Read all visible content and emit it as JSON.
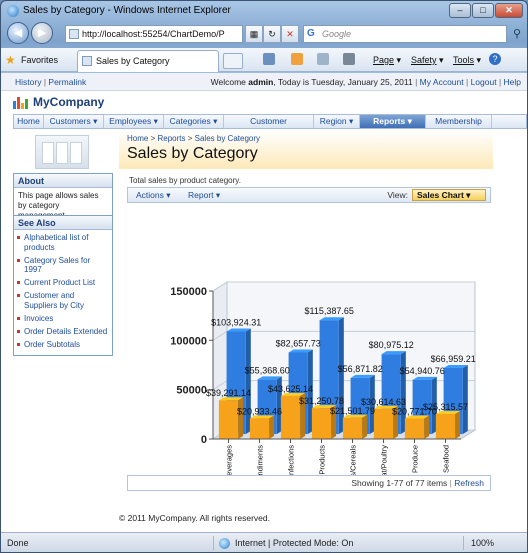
{
  "browser": {
    "window_title": "Sales by Category - Windows Internet Explorer",
    "url": "http://localhost:55254/ChartDemo/P",
    "search_placeholder": "Google",
    "favorites_label": "Favorites",
    "tab_label": "Sales by Category",
    "commands": {
      "page": "Page",
      "safety": "Safety",
      "tools": "Tools"
    },
    "status_done": "Done",
    "status_zone": "Internet | Protected Mode: On",
    "zoom": "100%"
  },
  "topline": {
    "history": "History",
    "permalink": "Permalink",
    "welcome_prefix": "Welcome ",
    "user": "admin",
    "today": ", Today is Tuesday, January 25, 2011",
    "my_account": "My Account",
    "logout": "Logout",
    "help": "Help"
  },
  "app": {
    "name": "MyCompany"
  },
  "menu": [
    {
      "label": "Home"
    },
    {
      "label": "Customers ▾"
    },
    {
      "label": "Employees ▾"
    },
    {
      "label": "Categories ▾"
    },
    {
      "label": "Customer Demographics"
    },
    {
      "label": "Region ▾"
    },
    {
      "label": "Reports ▾"
    },
    {
      "label": "Membership"
    }
  ],
  "sidebar": {
    "about_title": "About",
    "about_text": "This page allows sales by category management.",
    "see_also_title": "See Also",
    "links": [
      "Alphabetical list of products",
      "Category Sales for 1997",
      "Current Product List",
      "Customer and Suppliers by City",
      "Invoices",
      "Order Details Extended",
      "Order Subtotals"
    ]
  },
  "main": {
    "breadcrumb": [
      "Home",
      "Reports",
      "Sales by Category"
    ],
    "title": "Sales by Category",
    "description": "Total sales by product category.",
    "actions_label": "Actions ▾",
    "report_label": "Report ▾",
    "view_label": "View:",
    "view_selected": "Sales Chart ▾",
    "pager_text": "Showing 1-77 of 77 items",
    "refresh_label": "Refresh"
  },
  "footer": "© 2011 MyCompany. All rights reserved.",
  "chart_data": {
    "type": "bar",
    "categories": [
      "Beverages",
      "Condiments",
      "Confections",
      "Dairy Products",
      "Grains/Cereals",
      "Meat/Poultry",
      "Produce",
      "Seafood"
    ],
    "series": [
      {
        "values": [
          103924.31,
          55368.6,
          82657.73,
          115387.65,
          56871.82,
          80975.12,
          54940.76,
          66959.21
        ],
        "color": "#2f7de1"
      },
      {
        "values": [
          39291.14,
          20933.46,
          43625.14,
          31250.78,
          21501.79,
          30614.63,
          20771.7,
          25315.57
        ],
        "color": "#f7a21b"
      }
    ],
    "data_labels": [
      [
        "$103,924.31",
        "$55,368.60",
        "$82,657.73",
        "$115,387.65",
        "$56,871.82",
        "$80,975.12",
        "$54,940.76",
        "$66,959.21"
      ],
      [
        "$39,291.14",
        "$20,933.46",
        "$43,625.14",
        "$31,250.78",
        "$21,501.79",
        "$30,614.63",
        "$20,771.70",
        "$25,315.57"
      ]
    ],
    "ylim": [
      0,
      150000
    ],
    "yticks": [
      0,
      50000,
      100000,
      150000
    ],
    "ytick_labels": [
      "0",
      "50000",
      "100000",
      "150000"
    ],
    "grid": true,
    "style": "3d"
  }
}
